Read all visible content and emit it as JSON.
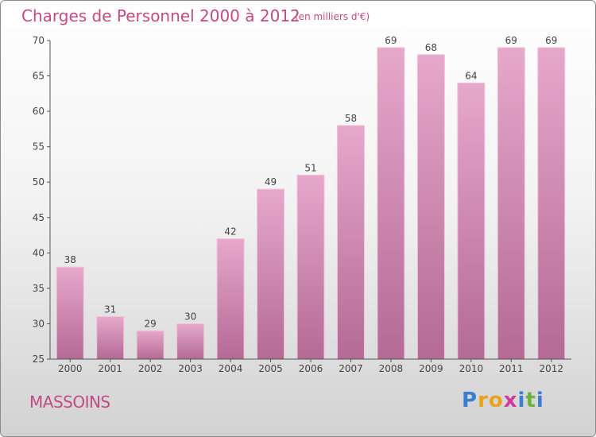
{
  "chart_data": {
    "type": "bar",
    "title": "Charges de Personnel 2000 à 2012",
    "subtitle": "(en milliers d'€)",
    "categories": [
      "2000",
      "2001",
      "2002",
      "2003",
      "2004",
      "2005",
      "2006",
      "2007",
      "2008",
      "2009",
      "2010",
      "2011",
      "2012"
    ],
    "values": [
      38,
      31,
      29,
      30,
      42,
      49,
      51,
      58,
      69,
      68,
      64,
      69,
      69
    ],
    "ylim": [
      25,
      70
    ],
    "yticks": [
      25,
      30,
      35,
      40,
      45,
      50,
      55,
      60,
      65,
      70
    ],
    "grid": false,
    "bar_color": "#d98ab4",
    "bar_color_top": "#e6a8cb",
    "bar_color_bottom": "#b46a95"
  },
  "place_name": "MASSOINS",
  "brand": {
    "letters": [
      "P",
      "r",
      "o",
      "x",
      "i",
      "t",
      "i"
    ],
    "colors": [
      "#3c7fd0",
      "#e8a21c",
      "#e8a21c",
      "#d03a9b",
      "#3c7fd0",
      "#6bb33a",
      "#3c7fd0"
    ]
  },
  "colors": {
    "accent": "#c34a84",
    "axis": "#555555"
  }
}
